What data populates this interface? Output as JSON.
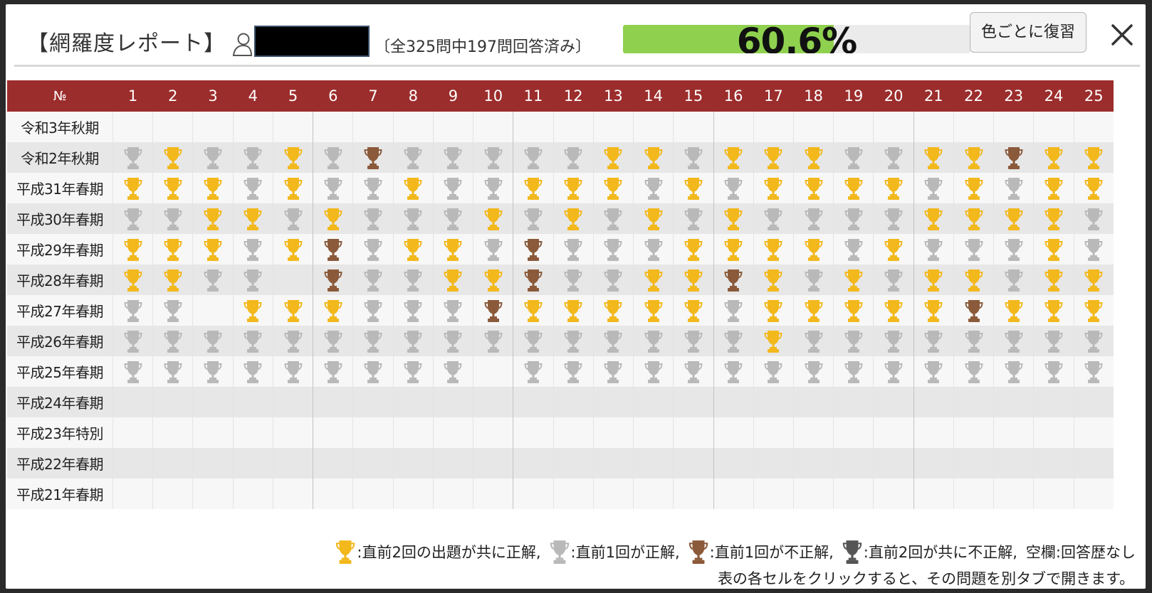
{
  "header": {
    "title": "【網羅度レポート】",
    "answer_count_text": "〔全325問中197問回答済み〕",
    "progress_percent": 60.6,
    "progress_label": "60.6%",
    "review_button_label": "色ごとに復習",
    "close_icon": "close-icon"
  },
  "table": {
    "corner_label": "№",
    "columns": [
      "1",
      "2",
      "3",
      "4",
      "5",
      "6",
      "7",
      "8",
      "9",
      "10",
      "11",
      "12",
      "13",
      "14",
      "15",
      "16",
      "17",
      "18",
      "19",
      "20",
      "21",
      "22",
      "23",
      "24",
      "25"
    ],
    "rows": [
      {
        "label": "令和3年秋期",
        "cells": "_________________________"
      },
      {
        "label": "令和2年秋期",
        "cells": "SGSSGSBSSSSSGGSGGGSSGGBGG"
      },
      {
        "label": "平成31年春期",
        "cells": "GGGSGSSGSSGGGSGSGGGGSGSGG"
      },
      {
        "label": "平成30年春期",
        "cells": "SSGGSGSSSGSGSGSGSSSSGGGGS"
      },
      {
        "label": "平成29年春期",
        "cells": "GGGSGBSGGSBSSSGGGGSGSSSGS"
      },
      {
        "label": "平成28年春期",
        "cells": "GGSS_BSSGGBSSGGBGSGSGGSGG"
      },
      {
        "label": "平成27年春期",
        "cells": "SS_GGGSSSBGGGGGSGGGGGBGGG"
      },
      {
        "label": "平成26年春期",
        "cells": "SSSSSSSSSSSSSSSSGSSSSSSSS"
      },
      {
        "label": "平成25年春期",
        "cells": "SSSSSSSSS_SSSSSSSSSSSSSSS"
      },
      {
        "label": "平成24年春期",
        "cells": "_________________________"
      },
      {
        "label": "平成23年特別",
        "cells": "_________________________"
      },
      {
        "label": "平成22年春期",
        "cells": "_________________________"
      },
      {
        "label": "平成21年春期",
        "cells": "_________________________"
      }
    ],
    "cell_code_meaning": {
      "G": "gold-trophy",
      "S": "silver-trophy",
      "B": "bronze-trophy",
      "_": "blank"
    }
  },
  "legend": {
    "gold_text": ":直前2回の出題が共に正解,",
    "silver_text": ":直前1回が正解,",
    "bronze_text": ":直前1回が不正解,",
    "black_text": ":直前2回が共に不正解,",
    "blank_text": "空欄:回答歴なし"
  },
  "note": "表の各セルをクリックすると、その問題を別タブで開きます。",
  "colors": {
    "header_row": "#9b2d2c",
    "progress_fill": "#8fd14f",
    "gold": "#f2b81c",
    "silver": "#b9b9b9",
    "bronze": "#8a5a3a",
    "black": "#555555"
  }
}
